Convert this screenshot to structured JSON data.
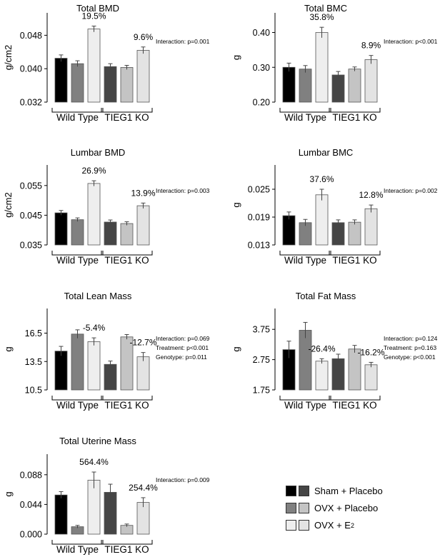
{
  "groups": [
    "Wild Type",
    "TIEG1 KO"
  ],
  "colors": {
    "wt": [
      "#000000",
      "#808080",
      "#eeeeee"
    ],
    "ko": [
      "#454545",
      "#c4c4c4",
      "#e3e3e3"
    ],
    "bar_stroke": "#555555"
  },
  "legend": [
    {
      "label": "Sham + Placebo",
      "colors": [
        "#000000",
        "#454545"
      ]
    },
    {
      "label": "OVX + Placebo",
      "colors": [
        "#808080",
        "#c4c4c4"
      ]
    },
    {
      "label": "OVX + E",
      "sub": "2",
      "colors": [
        "#eeeeee",
        "#e3e3e3"
      ]
    }
  ],
  "chart_data": [
    {
      "type": "bar",
      "title": "Total BMD",
      "ylabel": "g/cm2",
      "ylim": [
        0.032,
        0.052
      ],
      "yticks": [
        "0.032",
        "0.040",
        "0.048"
      ],
      "series": [
        {
          "group": "Wild Type",
          "values": [
            0.0425,
            0.0412,
            0.0495
          ],
          "errors": [
            0.0008,
            0.0007,
            0.0007
          ]
        },
        {
          "group": "TIEG1 KO",
          "values": [
            0.0405,
            0.0403,
            0.0444
          ],
          "errors": [
            0.0007,
            0.0005,
            0.0008
          ]
        }
      ],
      "annotations": [
        {
          "text": "19.5%",
          "group": 0,
          "bar": 2
        },
        {
          "text": "9.6%",
          "group": 1,
          "bar": 2
        }
      ],
      "stats": [
        "Interaction: p=0.001"
      ]
    },
    {
      "type": "bar",
      "title": "Total BMC",
      "ylabel": "g",
      "ylim": [
        0.2,
        0.44
      ],
      "yticks": [
        "0.20",
        "0.30",
        "0.40"
      ],
      "series": [
        {
          "group": "Wild Type",
          "values": [
            0.3,
            0.295,
            0.4
          ],
          "errors": [
            0.012,
            0.01,
            0.015
          ]
        },
        {
          "group": "TIEG1 KO",
          "values": [
            0.278,
            0.295,
            0.322
          ],
          "errors": [
            0.01,
            0.006,
            0.012
          ]
        }
      ],
      "annotations": [
        {
          "text": "35.8%",
          "group": 0,
          "bar": 2
        },
        {
          "text": "8.9%",
          "group": 1,
          "bar": 2
        }
      ],
      "stats": [
        "Interaction: p<0.001"
      ]
    },
    {
      "type": "bar",
      "title": "Lumbar BMD",
      "ylabel": "g/cm2",
      "ylim": [
        0.035,
        0.06
      ],
      "yticks": [
        "0.035",
        "0.045",
        "0.055"
      ],
      "series": [
        {
          "group": "Wild Type",
          "values": [
            0.0458,
            0.0435,
            0.0557
          ],
          "errors": [
            0.0008,
            0.0006,
            0.0009
          ]
        },
        {
          "group": "TIEG1 KO",
          "values": [
            0.0427,
            0.0422,
            0.0482
          ],
          "errors": [
            0.0007,
            0.0006,
            0.0009
          ]
        }
      ],
      "annotations": [
        {
          "text": "26.9%",
          "group": 0,
          "bar": 2
        },
        {
          "text": "13.9%",
          "group": 1,
          "bar": 2
        }
      ],
      "stats": [
        "Interaction: p=0.003"
      ]
    },
    {
      "type": "bar",
      "title": "Lumbar BMC",
      "ylabel": "g",
      "ylim": [
        0.013,
        0.029
      ],
      "yticks": [
        "0.013",
        "0.019",
        "0.025"
      ],
      "series": [
        {
          "group": "Wild Type",
          "values": [
            0.0193,
            0.0178,
            0.0238
          ],
          "errors": [
            0.0008,
            0.0007,
            0.0012
          ]
        },
        {
          "group": "TIEG1 KO",
          "values": [
            0.0178,
            0.0179,
            0.0208
          ],
          "errors": [
            0.0006,
            0.0005,
            0.0008
          ]
        }
      ],
      "annotations": [
        {
          "text": "37.6%",
          "group": 0,
          "bar": 2
        },
        {
          "text": "12.8%",
          "group": 1,
          "bar": 2
        }
      ],
      "stats": [
        "Interaction: p=0.002"
      ]
    },
    {
      "type": "bar",
      "title": "Total Lean Mass",
      "ylabel": "g",
      "ylim": [
        10.5,
        18.5
      ],
      "yticks": [
        "10.5",
        "13.5",
        "16.5"
      ],
      "series": [
        {
          "group": "Wild Type",
          "values": [
            14.6,
            16.4,
            15.6
          ],
          "errors": [
            0.5,
            0.45,
            0.4
          ]
        },
        {
          "group": "TIEG1 KO",
          "values": [
            13.2,
            16.1,
            14.0
          ],
          "errors": [
            0.35,
            0.25,
            0.45
          ]
        }
      ],
      "annotations": [
        {
          "text": "-5.4%",
          "group": 0,
          "bar": 2
        },
        {
          "text": "-12.7%",
          "group": 1,
          "bar": 2
        }
      ],
      "stats": [
        "Interaction: p=0.069",
        "Treatment: p<0.001",
        "Genotype: p=0.011"
      ]
    },
    {
      "type": "bar",
      "title": "Total Fat Mass",
      "ylabel": "g",
      "ylim": [
        1.75,
        4.25
      ],
      "yticks": [
        "1.75",
        "2.75",
        "3.75"
      ],
      "series": [
        {
          "group": "Wild Type",
          "values": [
            3.08,
            3.72,
            2.7
          ],
          "errors": [
            0.28,
            0.26,
            0.08
          ]
        },
        {
          "group": "TIEG1 KO",
          "values": [
            2.78,
            3.1,
            2.58
          ],
          "errors": [
            0.15,
            0.12,
            0.08
          ]
        }
      ],
      "annotations": [
        {
          "text": "-26.4%",
          "group": 0,
          "bar": 2
        },
        {
          "text": "-16.2%",
          "group": 1,
          "bar": 2
        }
      ],
      "stats": [
        "Interaction: p=0.124",
        "Treatment: p=0.163",
        "Genotype: p<0.001"
      ]
    },
    {
      "type": "bar",
      "title": "Total Uterine Mass",
      "ylabel": "g",
      "ylim": [
        0.0,
        0.11
      ],
      "yticks": [
        "0.000",
        "0.044",
        "0.088"
      ],
      "series": [
        {
          "group": "Wild Type",
          "values": [
            0.058,
            0.011,
            0.08
          ],
          "errors": [
            0.005,
            0.002,
            0.012
          ]
        },
        {
          "group": "TIEG1 KO",
          "values": [
            0.062,
            0.013,
            0.047
          ],
          "errors": [
            0.012,
            0.002,
            0.007
          ]
        }
      ],
      "annotations": [
        {
          "text": "564.4%",
          "group": 0,
          "bar": 2
        },
        {
          "text": "254.4%",
          "group": 1,
          "bar": 2
        }
      ],
      "stats": [
        "Interaction: p=0.009"
      ]
    }
  ]
}
